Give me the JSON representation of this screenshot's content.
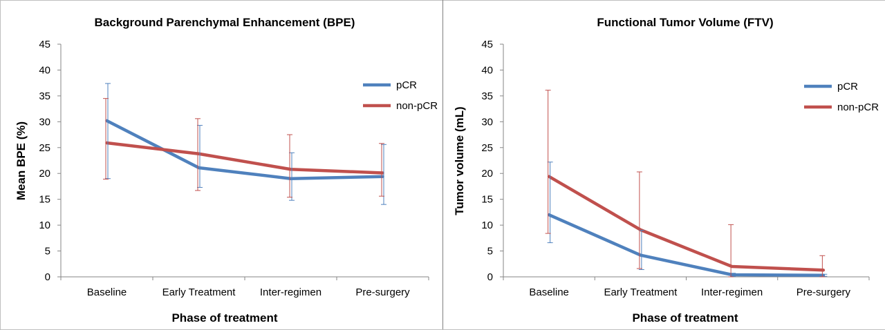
{
  "chart_data": [
    {
      "type": "line",
      "title": "Background Parenchymal Enhancement (BPE)",
      "xlabel": "Phase of treatment",
      "ylabel": "Mean BPE (%)",
      "categories": [
        "Baseline",
        "Early Treatment",
        "Inter-regimen",
        "Pre-surgery"
      ],
      "ylim": [
        0,
        45
      ],
      "yticks": [
        "0",
        "5",
        "10",
        "15",
        "20",
        "25",
        "30",
        "35",
        "40",
        "45"
      ],
      "grid": false,
      "legend_position": "right",
      "series": [
        {
          "name": "pCR",
          "color": "#4f81bd",
          "values": [
            30.2,
            21.1,
            19.0,
            19.4
          ],
          "error_low": [
            19.0,
            17.3,
            14.8,
            14.0
          ],
          "error_high": [
            37.4,
            29.3,
            24.0,
            25.6
          ]
        },
        {
          "name": "non-pCR",
          "color": "#c0504d",
          "values": [
            25.9,
            23.8,
            20.8,
            20.1
          ],
          "error_low": [
            18.9,
            16.7,
            15.4,
            15.6
          ],
          "error_high": [
            34.5,
            30.6,
            27.5,
            25.8
          ]
        }
      ]
    },
    {
      "type": "line",
      "title": "Functional Tumor Volume (FTV)",
      "xlabel": "Phase of treatment",
      "ylabel": "Tumor volume (mL)",
      "categories": [
        "Baseline",
        "Early Treatment",
        "Inter-regimen",
        "Pre-surgery"
      ],
      "ylim": [
        0,
        45
      ],
      "yticks": [
        "0",
        "5",
        "10",
        "15",
        "20",
        "25",
        "30",
        "35",
        "40",
        "45"
      ],
      "grid": false,
      "legend_position": "right",
      "series": [
        {
          "name": "pCR",
          "color": "#4f81bd",
          "values": [
            12.0,
            4.2,
            0.4,
            0.3
          ],
          "error_low": [
            6.6,
            1.4,
            0.1,
            0.1
          ],
          "error_high": [
            22.2,
            9.0,
            0.7,
            0.5
          ]
        },
        {
          "name": "non-pCR",
          "color": "#c0504d",
          "values": [
            19.4,
            9.1,
            2.0,
            1.3
          ],
          "error_low": [
            8.4,
            1.6,
            0.0,
            0.0
          ],
          "error_high": [
            36.1,
            20.3,
            10.1,
            4.1
          ]
        }
      ]
    }
  ]
}
